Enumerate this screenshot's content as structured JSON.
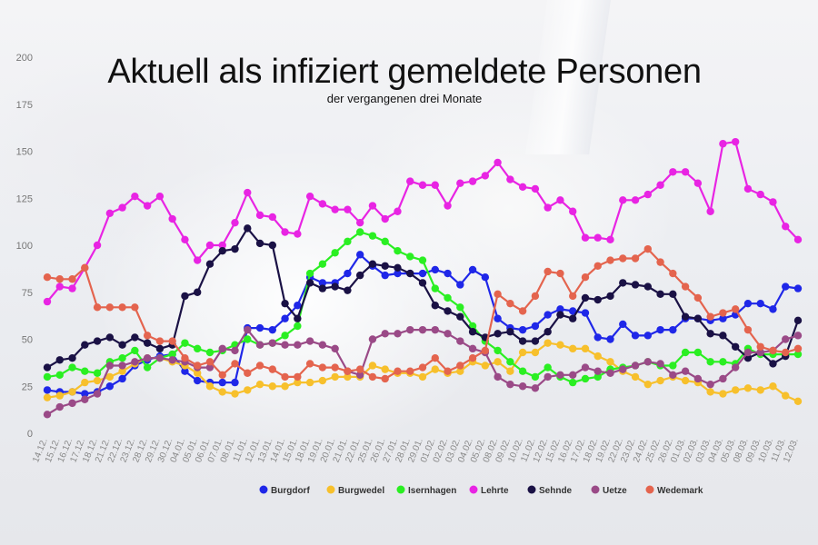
{
  "chart_data": {
    "type": "line",
    "title": "Aktuell als infiziert gemeldete Personen",
    "subtitle": "der vergangenen drei Monate",
    "xlabel": "",
    "ylabel": "",
    "ylim": [
      0,
      200
    ],
    "yticks": [
      0,
      25,
      50,
      75,
      100,
      125,
      150,
      175,
      200
    ],
    "grid": false,
    "legend_position": "bottom",
    "categories": [
      "14.12.",
      "15.12.",
      "16.12.",
      "17.12.",
      "18.12.",
      "21.12.",
      "22.12.",
      "23.12.",
      "28.12.",
      "29.12.",
      "30.12.",
      "04.01.",
      "05.01.",
      "06.01.",
      "07.01.",
      "08.01.",
      "11.01.",
      "12.01.",
      "13.01.",
      "14.01.",
      "15.01.",
      "18.01.",
      "19.01.",
      "20.01.",
      "21.01.",
      "22.01.",
      "25.01.",
      "26.01.",
      "27.01.",
      "28.01.",
      "29.01.",
      "01.02.",
      "02.02.",
      "03.02.",
      "04.02.",
      "05.02.",
      "08.02.",
      "09.02.",
      "10.02.",
      "11.02.",
      "12.02.",
      "15.02.",
      "16.02.",
      "17.02.",
      "18.02.",
      "19.02.",
      "22.02.",
      "23.02.",
      "24.02.",
      "25.02.",
      "26.02.",
      "01.03.",
      "02.03.",
      "03.03.",
      "04.03.",
      "05.03.",
      "08.03.",
      "09.03.",
      "10.03.",
      "11.03.",
      "12.03."
    ],
    "series": [
      {
        "name": "Burgdorf",
        "color": "#1f27e8",
        "values": [
          23,
          22,
          22,
          21,
          22,
          25,
          29,
          36,
          39,
          41,
          42,
          33,
          28,
          27,
          27,
          27,
          56,
          56,
          55,
          61,
          68,
          83,
          80,
          80,
          85,
          95,
          89,
          84,
          85,
          85,
          85,
          87,
          85,
          79,
          87,
          83,
          61,
          56,
          55,
          57,
          63,
          66,
          65,
          64,
          51,
          50,
          58,
          52,
          52,
          55,
          55,
          61,
          61,
          60,
          61,
          63,
          69,
          69,
          66,
          78,
          77
        ]
      },
      {
        "name": "Burgwedel",
        "color": "#f7c02c",
        "values": [
          19,
          20,
          22,
          27,
          28,
          30,
          33,
          37,
          40,
          40,
          38,
          36,
          32,
          25,
          22,
          21,
          23,
          26,
          25,
          25,
          27,
          27,
          28,
          30,
          30,
          30,
          36,
          34,
          32,
          32,
          30,
          34,
          32,
          33,
          38,
          36,
          38,
          33,
          43,
          43,
          48,
          47,
          45,
          45,
          41,
          38,
          33,
          30,
          26,
          28,
          30,
          28,
          27,
          22,
          21,
          23,
          24,
          23,
          25,
          20,
          17
        ]
      },
      {
        "name": "Isernhagen",
        "color": "#2aef22",
        "values": [
          30,
          31,
          35,
          33,
          32,
          38,
          40,
          44,
          35,
          40,
          42,
          48,
          45,
          43,
          44,
          47,
          50,
          47,
          48,
          52,
          57,
          85,
          90,
          96,
          102,
          107,
          105,
          102,
          97,
          94,
          92,
          77,
          72,
          67,
          57,
          49,
          44,
          38,
          33,
          30,
          35,
          30,
          27,
          29,
          30,
          34,
          35,
          36,
          38,
          36,
          36,
          43,
          43,
          38,
          38,
          37,
          45,
          42,
          42,
          42,
          42
        ]
      },
      {
        "name": "Lehrte",
        "color": "#e824e3",
        "values": [
          70,
          78,
          77,
          88,
          100,
          117,
          120,
          126,
          121,
          126,
          114,
          103,
          92,
          100,
          100,
          112,
          128,
          116,
          115,
          107,
          106,
          126,
          122,
          119,
          119,
          112,
          121,
          114,
          118,
          134,
          132,
          132,
          121,
          133,
          134,
          137,
          144,
          135,
          131,
          130,
          120,
          124,
          118,
          104,
          104,
          103,
          124,
          124,
          127,
          132,
          139,
          139,
          133,
          118,
          154,
          155,
          130,
          127,
          123,
          110,
          103
        ]
      },
      {
        "name": "Sehnde",
        "color": "#1a1145",
        "values": [
          35,
          39,
          40,
          47,
          49,
          51,
          47,
          51,
          48,
          45,
          47,
          73,
          75,
          90,
          97,
          98,
          109,
          101,
          100,
          69,
          61,
          80,
          77,
          78,
          76,
          84,
          90,
          89,
          88,
          85,
          80,
          68,
          65,
          62,
          54,
          51,
          53,
          54,
          49,
          49,
          54,
          63,
          61,
          72,
          71,
          73,
          80,
          79,
          78,
          74,
          74,
          62,
          61,
          53,
          52,
          46,
          40,
          43,
          37,
          41,
          60
        ]
      },
      {
        "name": "Uetze",
        "color": "#9a4a87",
        "values": [
          10,
          14,
          16,
          18,
          21,
          36,
          36,
          38,
          40,
          40,
          39,
          38,
          35,
          35,
          45,
          44,
          55,
          47,
          48,
          47,
          47,
          49,
          47,
          45,
          33,
          31,
          50,
          53,
          53,
          55,
          55,
          55,
          53,
          49,
          45,
          43,
          30,
          26,
          25,
          24,
          30,
          31,
          31,
          35,
          33,
          32,
          34,
          36,
          38,
          37,
          31,
          33,
          29,
          26,
          29,
          35,
          43,
          43,
          44,
          50,
          52
        ]
      },
      {
        "name": "Wedemark",
        "color": "#e4644e",
        "values": [
          83,
          82,
          82,
          88,
          67,
          67,
          67,
          67,
          52,
          49,
          49,
          40,
          36,
          38,
          31,
          37,
          32,
          36,
          34,
          30,
          30,
          37,
          35,
          35,
          33,
          34,
          30,
          29,
          33,
          33,
          35,
          40,
          33,
          36,
          40,
          44,
          74,
          69,
          65,
          73,
          86,
          85,
          73,
          83,
          89,
          92,
          93,
          93,
          98,
          91,
          85,
          78,
          72,
          62,
          64,
          66,
          55,
          46,
          44,
          43,
          45
        ]
      }
    ]
  }
}
